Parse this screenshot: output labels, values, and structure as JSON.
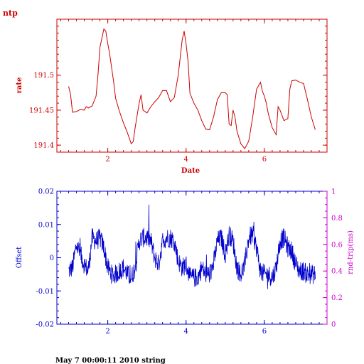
{
  "figure_label": "ntp",
  "footer": "May  7 00:00:11 2010 string",
  "colors": {
    "top": "#cc0000",
    "offset": "#0000cc",
    "roundtrip": "#cc00cc",
    "background": "#ffffff"
  },
  "chart_data": [
    {
      "type": "line",
      "title": "",
      "xlabel": "Date",
      "ylabel": "rate",
      "xlim": [
        0.7,
        7.6
      ],
      "ylim": [
        191.39,
        191.58
      ],
      "x_ticks": [
        "2",
        "4",
        "6"
      ],
      "y_ticks": [
        "191.4",
        "191.45",
        "191.5"
      ],
      "grid": false,
      "series": [
        {
          "x": [
            1.0,
            1.05,
            1.1,
            1.2,
            1.3,
            1.4,
            1.45,
            1.5,
            1.6,
            1.7,
            1.75,
            1.8,
            1.9,
            1.95,
            2.0,
            2.05,
            2.1,
            2.15,
            2.2,
            2.3,
            2.4,
            2.5,
            2.6,
            2.65,
            2.7,
            2.8,
            2.85,
            2.9,
            3.0,
            3.1,
            3.2,
            3.3,
            3.4,
            3.5,
            3.6,
            3.7,
            3.8,
            3.9,
            3.95,
            4.0,
            4.05,
            4.1,
            4.2,
            4.3,
            4.4,
            4.5,
            4.6,
            4.7,
            4.8,
            4.9,
            5.0,
            5.05,
            5.1,
            5.15,
            5.2,
            5.25,
            5.3,
            5.4,
            5.5,
            5.6,
            5.7,
            5.8,
            5.9,
            5.95,
            6.0,
            6.05,
            6.1,
            6.2,
            6.3,
            6.35,
            6.4,
            6.5,
            6.6,
            6.65,
            6.7,
            6.8,
            6.9,
            7.0,
            7.1,
            7.2,
            7.3
          ],
          "values": [
            191.484,
            191.472,
            191.447,
            191.448,
            191.451,
            191.45,
            191.455,
            191.453,
            191.456,
            191.47,
            191.5,
            191.54,
            191.566,
            191.563,
            191.545,
            191.53,
            191.51,
            191.49,
            191.467,
            191.448,
            191.432,
            191.418,
            191.402,
            191.405,
            191.425,
            191.46,
            191.472,
            191.45,
            191.446,
            191.455,
            191.462,
            191.468,
            191.478,
            191.478,
            191.462,
            191.468,
            191.5,
            191.55,
            191.563,
            191.545,
            191.52,
            191.474,
            191.46,
            191.45,
            191.435,
            191.423,
            191.422,
            191.44,
            191.465,
            191.475,
            191.475,
            191.472,
            191.43,
            191.428,
            191.45,
            191.44,
            191.42,
            191.402,
            191.395,
            191.406,
            191.44,
            191.48,
            191.49,
            191.477,
            191.47,
            191.46,
            191.445,
            191.425,
            191.415,
            191.455,
            191.45,
            191.435,
            191.438,
            191.48,
            191.492,
            191.493,
            191.49,
            191.488,
            191.465,
            191.44,
            191.422
          ]
        }
      ]
    },
    {
      "type": "line",
      "title": "",
      "xlabel": "",
      "ylabel": "Offset",
      "y2label": "rnd-trip(ms)",
      "xlim": [
        0.7,
        7.6
      ],
      "ylim": [
        -0.02,
        0.02
      ],
      "y2lim": [
        0,
        1
      ],
      "x_ticks": [
        "2",
        "4",
        "6"
      ],
      "y_ticks": [
        "-0.02",
        "-0.01",
        "0",
        "0.01",
        "0.02"
      ],
      "y2_ticks": [
        "0",
        "0.2",
        "0.4",
        "0.6",
        "0.8",
        "1"
      ],
      "grid": false,
      "series": [
        {
          "x": [
            1.0,
            1.1,
            1.2,
            1.3,
            1.4,
            1.5,
            1.6,
            1.7,
            1.8,
            1.9,
            2.0,
            2.1,
            2.2,
            2.3,
            2.4,
            2.5,
            2.6,
            2.7,
            2.8,
            2.9,
            3.0,
            3.1,
            3.2,
            3.3,
            3.4,
            3.5,
            3.6,
            3.7,
            3.8,
            3.9,
            4.0,
            4.1,
            4.2,
            4.3,
            4.4,
            4.5,
            4.6,
            4.7,
            4.8,
            4.9,
            5.0,
            5.1,
            5.2,
            5.3,
            5.4,
            5.5,
            5.6,
            5.7,
            5.8,
            5.9,
            6.0,
            6.1,
            6.2,
            6.3,
            6.4,
            6.5,
            6.6,
            6.7,
            6.8,
            6.9,
            7.0,
            7.1,
            7.2,
            7.3
          ],
          "values": [
            -0.004,
            -0.003,
            0.004,
            0.001,
            -0.002,
            -0.004,
            0.006,
            0.005,
            0.006,
            0.003,
            -0.003,
            -0.005,
            -0.005,
            -0.004,
            -0.003,
            -0.005,
            -0.006,
            -0.003,
            0.005,
            0.006,
            0.006,
            0.005,
            0.0,
            -0.002,
            0.005,
            0.006,
            0.006,
            0.005,
            -0.001,
            -0.003,
            -0.002,
            -0.006,
            -0.006,
            -0.006,
            -0.003,
            -0.005,
            -0.005,
            -0.002,
            0.005,
            0.006,
            0.001,
            0.007,
            0.005,
            -0.003,
            -0.005,
            -0.002,
            0.006,
            0.007,
            0.003,
            -0.004,
            -0.005,
            -0.005,
            -0.006,
            -0.003,
            0.005,
            0.006,
            0.003,
            0.002,
            -0.002,
            -0.004,
            -0.004,
            -0.005,
            -0.005,
            -0.005
          ],
          "noise": 0.003
        }
      ]
    }
  ]
}
